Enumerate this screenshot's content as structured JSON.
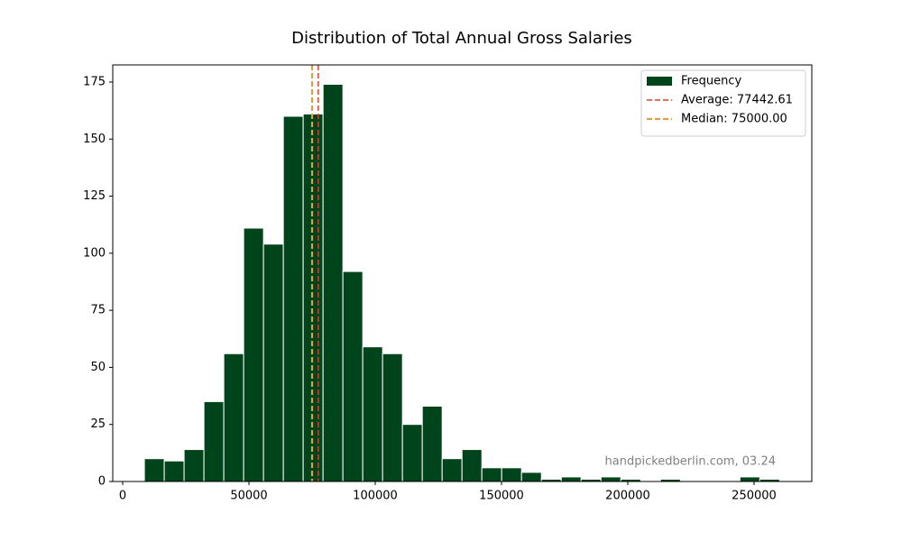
{
  "chart_data": {
    "type": "histogram",
    "title": "Distribution of Total Annual Gross Salaries",
    "annotation": "handpickedberlin.com, 03.24",
    "bins": [
      8600,
      16460,
      24320,
      32180,
      40040,
      47900,
      55760,
      63620,
      71480,
      79340,
      87200,
      95060,
      102920,
      110780,
      118640,
      126500,
      134360,
      142220,
      150080,
      157940,
      165800,
      173660,
      181520,
      189380,
      197240,
      205100,
      212960,
      220820,
      228680,
      236540,
      244400,
      252260,
      260120
    ],
    "values": [
      10,
      9,
      14,
      35,
      56,
      111,
      104,
      160,
      161,
      174,
      92,
      59,
      56,
      25,
      33,
      10,
      14,
      6,
      6,
      4,
      1,
      2,
      1,
      2,
      1,
      0,
      1,
      0,
      0,
      0,
      2,
      1
    ],
    "name": "Frequency",
    "color": "#00441b",
    "edgecolor": "#ffffff",
    "reference_lines": [
      {
        "name": "Average: 77442.61",
        "value": 77442.61,
        "color": "#d9412b",
        "width": 1.5
      },
      {
        "name": "Median: 75000.00",
        "value": 75000,
        "color": "#d9a04a",
        "width": 2.2
      }
    ],
    "xlim": [
      -3929,
      272857
    ],
    "ylim": [
      0,
      182.5
    ],
    "xticks": [
      0,
      50000,
      100000,
      150000,
      200000,
      250000
    ],
    "yticks": [
      0,
      25,
      50,
      75,
      100,
      125,
      150,
      175
    ],
    "legend": "upper right"
  }
}
